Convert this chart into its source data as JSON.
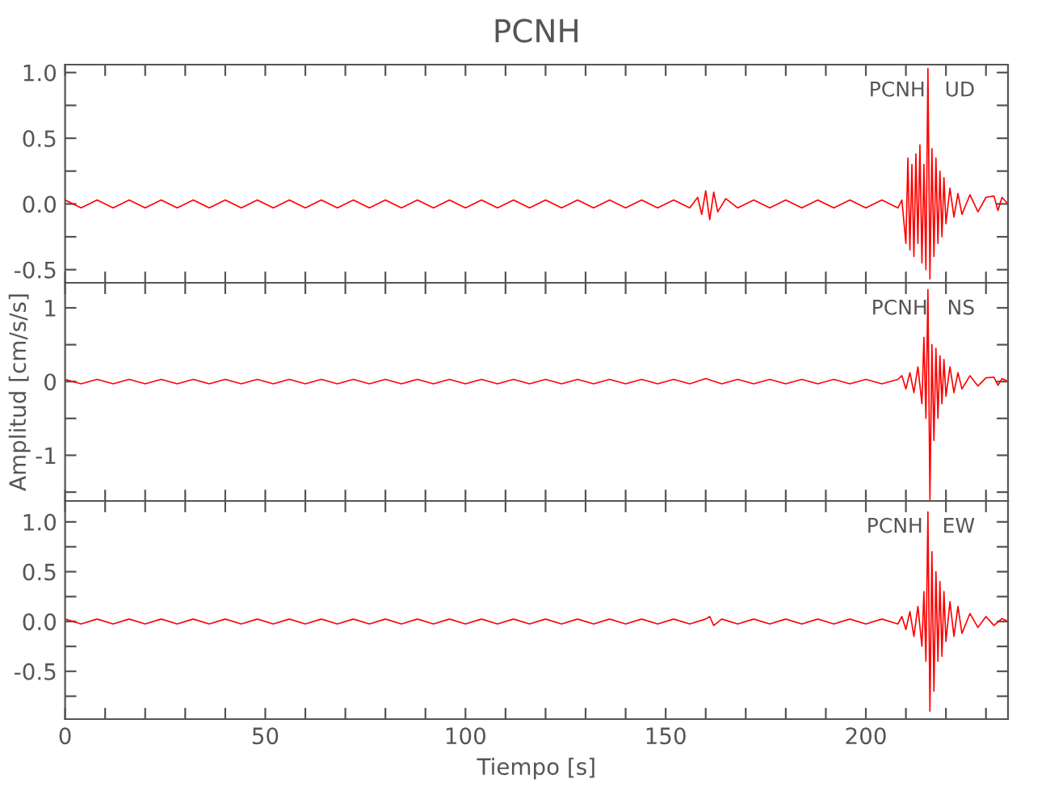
{
  "chart_data": [
    {
      "type": "line",
      "title": "PCNH",
      "annotations": [
        "PCNH   UD"
      ],
      "xlim": [
        0,
        235.5
      ],
      "ylim": [
        -0.6,
        1.06
      ],
      "xticks": [
        0,
        {
          "value": 10,
          "label": null
        },
        {
          "value": 20,
          "label": null
        },
        {
          "value": 30,
          "label": null
        },
        {
          "value": 40,
          "label": null
        },
        50,
        {
          "value": 60,
          "label": null
        },
        {
          "value": 70,
          "label": null
        },
        {
          "value": 80,
          "label": null
        },
        {
          "value": 90,
          "label": null
        },
        100,
        {
          "value": 110,
          "label": null
        },
        {
          "value": 120,
          "label": null
        },
        {
          "value": 130,
          "label": null
        },
        {
          "value": 140,
          "label": null
        },
        150,
        {
          "value": 160,
          "label": null
        },
        {
          "value": 170,
          "label": null
        },
        {
          "value": 180,
          "label": null
        },
        {
          "value": 190,
          "label": null
        },
        200,
        {
          "value": 210,
          "label": null
        },
        {
          "value": 220,
          "label": null
        },
        {
          "value": 230,
          "label": null
        }
      ],
      "yticks": [
        {
          "value": -0.5,
          "label": "-0.5"
        },
        {
          "value": -0.25,
          "label": null
        },
        {
          "value": 0,
          "label": "0.0"
        },
        {
          "value": 0.25,
          "label": null
        },
        {
          "value": 0.5,
          "label": "0.5"
        },
        {
          "value": 0.75,
          "label": null
        },
        {
          "value": 1,
          "label": "1.0"
        }
      ],
      "tick_labels": "y",
      "grid": false,
      "legend": false,
      "series": [
        {
          "color": "#ff0000",
          "x": [
            0,
            4,
            8,
            12,
            16,
            20,
            24,
            28,
            32,
            36,
            40,
            44,
            48,
            52,
            56,
            60,
            64,
            68,
            72,
            76,
            80,
            84,
            88,
            92,
            96,
            100,
            104,
            108,
            112,
            116,
            120,
            124,
            128,
            132,
            136,
            140,
            144,
            148,
            152,
            156,
            158,
            159,
            160,
            161,
            162,
            163,
            165,
            168,
            172,
            176,
            180,
            184,
            188,
            192,
            196,
            200,
            204,
            208,
            209,
            210,
            210.5,
            211,
            211.5,
            212,
            212.5,
            213,
            213.5,
            214,
            214.5,
            215,
            215.5,
            216,
            216.5,
            217,
            217.5,
            218,
            218.5,
            219,
            219.5,
            220,
            221,
            222,
            223,
            224,
            226,
            228,
            230,
            232,
            233,
            234,
            235.5
          ],
          "values": [
            0.03,
            -0.03,
            0.03,
            -0.03,
            0.03,
            -0.03,
            0.03,
            -0.03,
            0.03,
            -0.03,
            0.03,
            -0.03,
            0.03,
            -0.03,
            0.03,
            -0.03,
            0.03,
            -0.03,
            0.03,
            -0.03,
            0.03,
            -0.03,
            0.03,
            -0.03,
            0.03,
            -0.03,
            0.03,
            -0.03,
            0.03,
            -0.03,
            0.03,
            -0.03,
            0.03,
            -0.03,
            0.03,
            -0.03,
            0.03,
            -0.03,
            0.03,
            -0.03,
            0.05,
            -0.08,
            0.1,
            -0.12,
            0.09,
            -0.06,
            0.04,
            -0.03,
            0.03,
            -0.03,
            0.03,
            -0.03,
            0.03,
            -0.03,
            0.03,
            -0.03,
            0.03,
            -0.03,
            0.03,
            -0.3,
            0.35,
            -0.35,
            0.3,
            -0.4,
            0.38,
            -0.3,
            0.45,
            -0.45,
            0.3,
            -0.5,
            1.03,
            -0.57,
            0.42,
            -0.4,
            0.35,
            -0.3,
            0.25,
            -0.25,
            0.2,
            -0.15,
            0.12,
            -0.1,
            0.08,
            -0.08,
            0.07,
            -0.06,
            0.05,
            0.06,
            -0.05,
            0.05,
            0.0
          ]
        }
      ]
    },
    {
      "type": "line",
      "ylabel": "Amplitud [cm/s/s]",
      "annotations": [
        "PCNH   NS"
      ],
      "xlim": [
        0,
        235.5
      ],
      "ylim": [
        -1.62,
        1.34
      ],
      "xticks": [
        0,
        {
          "value": 10,
          "label": null
        },
        {
          "value": 20,
          "label": null
        },
        {
          "value": 30,
          "label": null
        },
        {
          "value": 40,
          "label": null
        },
        50,
        {
          "value": 60,
          "label": null
        },
        {
          "value": 70,
          "label": null
        },
        {
          "value": 80,
          "label": null
        },
        {
          "value": 90,
          "label": null
        },
        100,
        {
          "value": 110,
          "label": null
        },
        {
          "value": 120,
          "label": null
        },
        {
          "value": 130,
          "label": null
        },
        {
          "value": 140,
          "label": null
        },
        150,
        {
          "value": 160,
          "label": null
        },
        {
          "value": 170,
          "label": null
        },
        {
          "value": 180,
          "label": null
        },
        {
          "value": 190,
          "label": null
        },
        200,
        {
          "value": 210,
          "label": null
        },
        {
          "value": 220,
          "label": null
        },
        {
          "value": 230,
          "label": null
        }
      ],
      "yticks": [
        {
          "value": -1.5,
          "label": null
        },
        {
          "value": -1,
          "label": "-1"
        },
        {
          "value": -0.5,
          "label": null
        },
        0,
        {
          "value": 0.5,
          "label": null
        },
        1
      ],
      "tick_labels": "y",
      "grid": false,
      "legend": false,
      "series": [
        {
          "color": "#ff0000",
          "x": [
            0,
            4,
            8,
            12,
            16,
            20,
            24,
            28,
            32,
            36,
            40,
            44,
            48,
            52,
            56,
            60,
            64,
            68,
            72,
            76,
            80,
            84,
            88,
            92,
            96,
            100,
            104,
            108,
            112,
            116,
            120,
            124,
            128,
            132,
            136,
            140,
            144,
            148,
            152,
            156,
            160,
            164,
            168,
            172,
            176,
            180,
            184,
            188,
            192,
            196,
            200,
            204,
            208,
            209,
            210,
            211,
            212,
            213,
            214,
            214.5,
            215,
            215.5,
            216,
            216.5,
            217,
            217.5,
            218,
            218.5,
            219,
            219.5,
            220,
            221,
            222,
            223,
            224,
            226,
            228,
            230,
            232,
            233,
            234,
            235.5
          ],
          "values": [
            0.03,
            -0.03,
            0.03,
            -0.03,
            0.03,
            -0.03,
            0.03,
            -0.03,
            0.03,
            -0.03,
            0.03,
            -0.03,
            0.03,
            -0.03,
            0.03,
            -0.03,
            0.03,
            -0.03,
            0.03,
            -0.03,
            0.03,
            -0.03,
            0.03,
            -0.03,
            0.03,
            -0.03,
            0.03,
            -0.03,
            0.03,
            -0.03,
            0.03,
            -0.03,
            0.03,
            -0.03,
            0.03,
            -0.03,
            0.03,
            -0.03,
            0.03,
            -0.03,
            0.04,
            -0.03,
            0.03,
            -0.03,
            0.03,
            -0.03,
            0.03,
            -0.03,
            0.03,
            -0.03,
            0.03,
            -0.03,
            0.03,
            0.08,
            -0.1,
            0.12,
            -0.15,
            0.2,
            -0.3,
            0.6,
            -0.5,
            1.25,
            -1.6,
            0.5,
            -0.8,
            0.45,
            -0.5,
            0.35,
            -0.3,
            0.3,
            -0.2,
            0.2,
            -0.15,
            0.12,
            -0.1,
            0.08,
            -0.06,
            0.05,
            0.06,
            -0.05,
            0.04,
            0.0
          ]
        }
      ]
    },
    {
      "type": "line",
      "xlabel": "Tiempo [s]",
      "annotations": [
        "PCNH   EW"
      ],
      "xlim": [
        0,
        235.5
      ],
      "ylim": [
        -0.98,
        1.21
      ],
      "xticks": [
        0,
        {
          "value": 10,
          "label": null
        },
        {
          "value": 20,
          "label": null
        },
        {
          "value": 30,
          "label": null
        },
        {
          "value": 40,
          "label": null
        },
        50,
        {
          "value": 60,
          "label": null
        },
        {
          "value": 70,
          "label": null
        },
        {
          "value": 80,
          "label": null
        },
        {
          "value": 90,
          "label": null
        },
        100,
        {
          "value": 110,
          "label": null
        },
        {
          "value": 120,
          "label": null
        },
        {
          "value": 130,
          "label": null
        },
        {
          "value": 140,
          "label": null
        },
        150,
        {
          "value": 160,
          "label": null
        },
        {
          "value": 170,
          "label": null
        },
        {
          "value": 180,
          "label": null
        },
        {
          "value": 190,
          "label": null
        },
        200,
        {
          "value": 210,
          "label": null
        },
        {
          "value": 220,
          "label": null
        },
        {
          "value": 230,
          "label": null
        }
      ],
      "yticks": [
        {
          "value": -0.75,
          "label": null
        },
        {
          "value": -0.5,
          "label": "-0.5"
        },
        {
          "value": -0.25,
          "label": null
        },
        {
          "value": 0,
          "label": "0.0"
        },
        {
          "value": 0.25,
          "label": null
        },
        {
          "value": 0.5,
          "label": "0.5"
        },
        {
          "value": 0.75,
          "label": null
        },
        {
          "value": 1,
          "label": "1.0"
        }
      ],
      "grid": false,
      "legend": false,
      "series": [
        {
          "color": "#ff0000",
          "x": [
            0,
            4,
            8,
            12,
            16,
            20,
            24,
            28,
            32,
            36,
            40,
            44,
            48,
            52,
            56,
            60,
            64,
            68,
            72,
            76,
            80,
            84,
            88,
            92,
            96,
            100,
            104,
            108,
            112,
            116,
            120,
            124,
            128,
            132,
            136,
            140,
            144,
            148,
            152,
            156,
            160,
            161,
            162,
            164,
            168,
            172,
            176,
            180,
            184,
            188,
            192,
            196,
            200,
            204,
            208,
            209,
            210,
            211,
            212,
            213,
            214,
            214.5,
            215,
            215.5,
            216,
            216.5,
            217,
            217.5,
            218,
            218.5,
            219,
            219.5,
            220,
            221,
            222,
            223,
            224,
            226,
            228,
            230,
            232,
            234,
            235.5
          ],
          "values": [
            0.025,
            -0.025,
            0.025,
            -0.025,
            0.025,
            -0.025,
            0.025,
            -0.025,
            0.025,
            -0.025,
            0.025,
            -0.025,
            0.025,
            -0.025,
            0.025,
            -0.025,
            0.025,
            -0.025,
            0.025,
            -0.025,
            0.025,
            -0.025,
            0.025,
            -0.025,
            0.025,
            -0.025,
            0.025,
            -0.025,
            0.025,
            -0.025,
            0.025,
            -0.025,
            0.025,
            -0.025,
            0.025,
            -0.025,
            0.025,
            -0.025,
            0.025,
            -0.025,
            0.025,
            0.05,
            -0.04,
            0.025,
            -0.025,
            0.025,
            -0.025,
            0.025,
            -0.025,
            0.025,
            -0.025,
            0.025,
            -0.025,
            0.025,
            -0.025,
            0.05,
            -0.08,
            0.1,
            -0.15,
            0.15,
            -0.25,
            0.3,
            -0.4,
            1.1,
            -0.9,
            0.7,
            -0.7,
            0.5,
            -0.4,
            0.4,
            -0.35,
            0.3,
            -0.2,
            0.2,
            -0.15,
            0.15,
            -0.12,
            0.08,
            -0.06,
            0.05,
            -0.04,
            0.03,
            0.0
          ]
        }
      ]
    }
  ]
}
